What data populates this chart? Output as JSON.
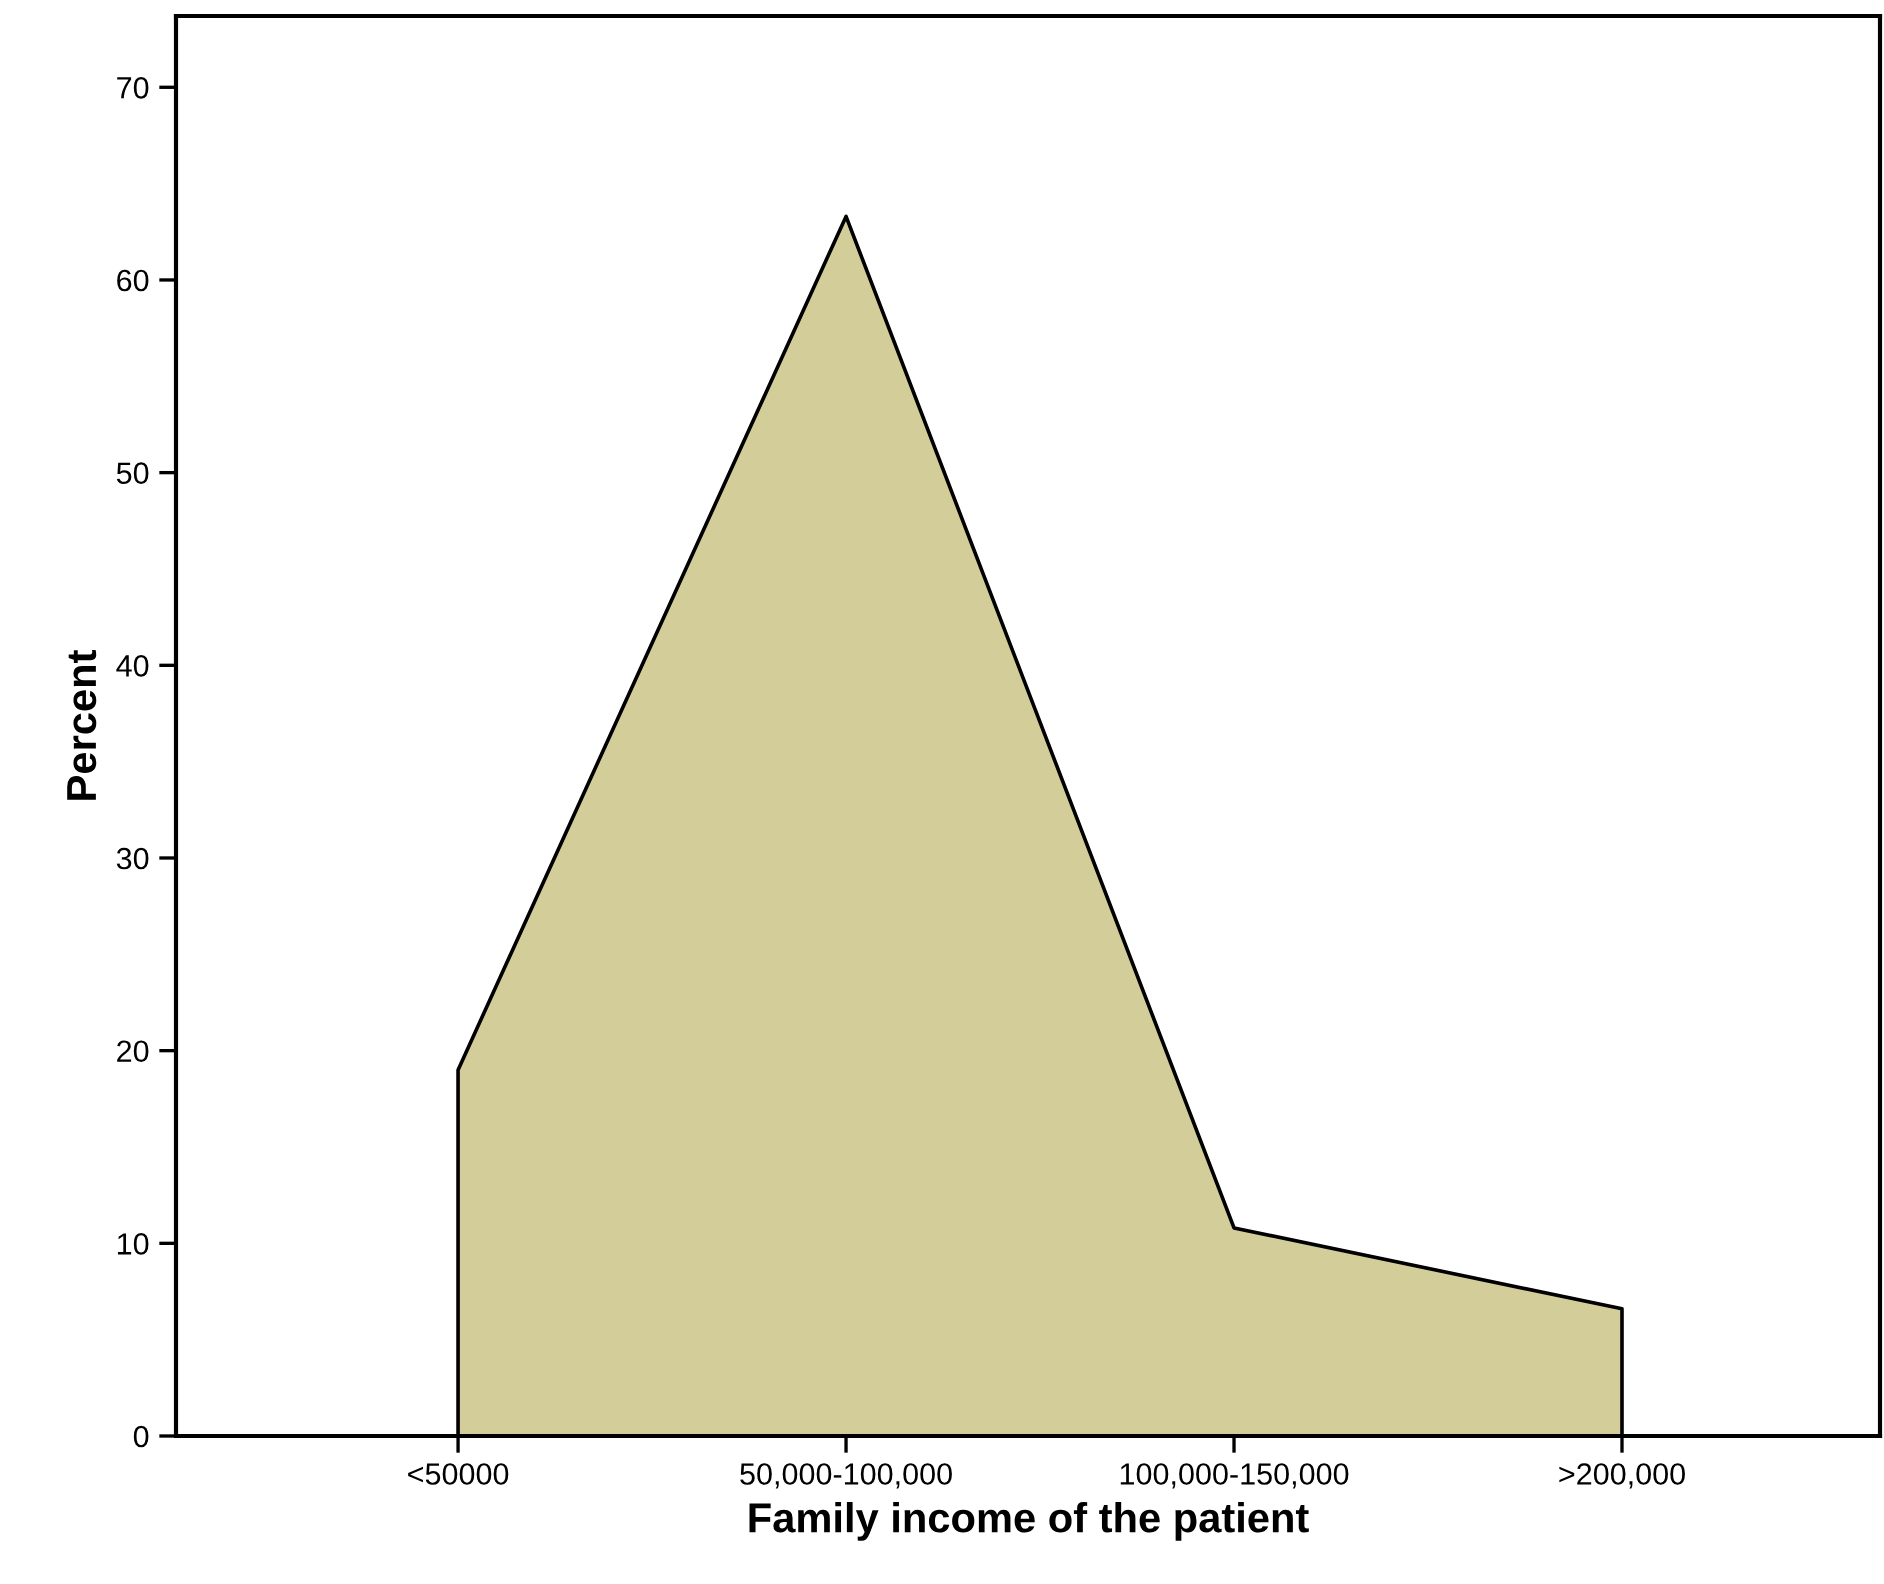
{
  "chart_data": {
    "type": "area",
    "xlabel": "Family income of the patient",
    "ylabel": "Percent",
    "categories": [
      "<50000",
      "50,000-100,000",
      "100,000-150,000",
      ">200,000"
    ],
    "series": [
      {
        "color": "#d3cd9a",
        "values": [
          19.0,
          63.3,
          10.8,
          6.6
        ]
      }
    ],
    "ylim": [
      0,
      73.7
    ],
    "yticks": [
      0,
      10,
      20,
      30,
      40,
      50,
      60,
      70
    ],
    "grid": false,
    "legend": false
  }
}
